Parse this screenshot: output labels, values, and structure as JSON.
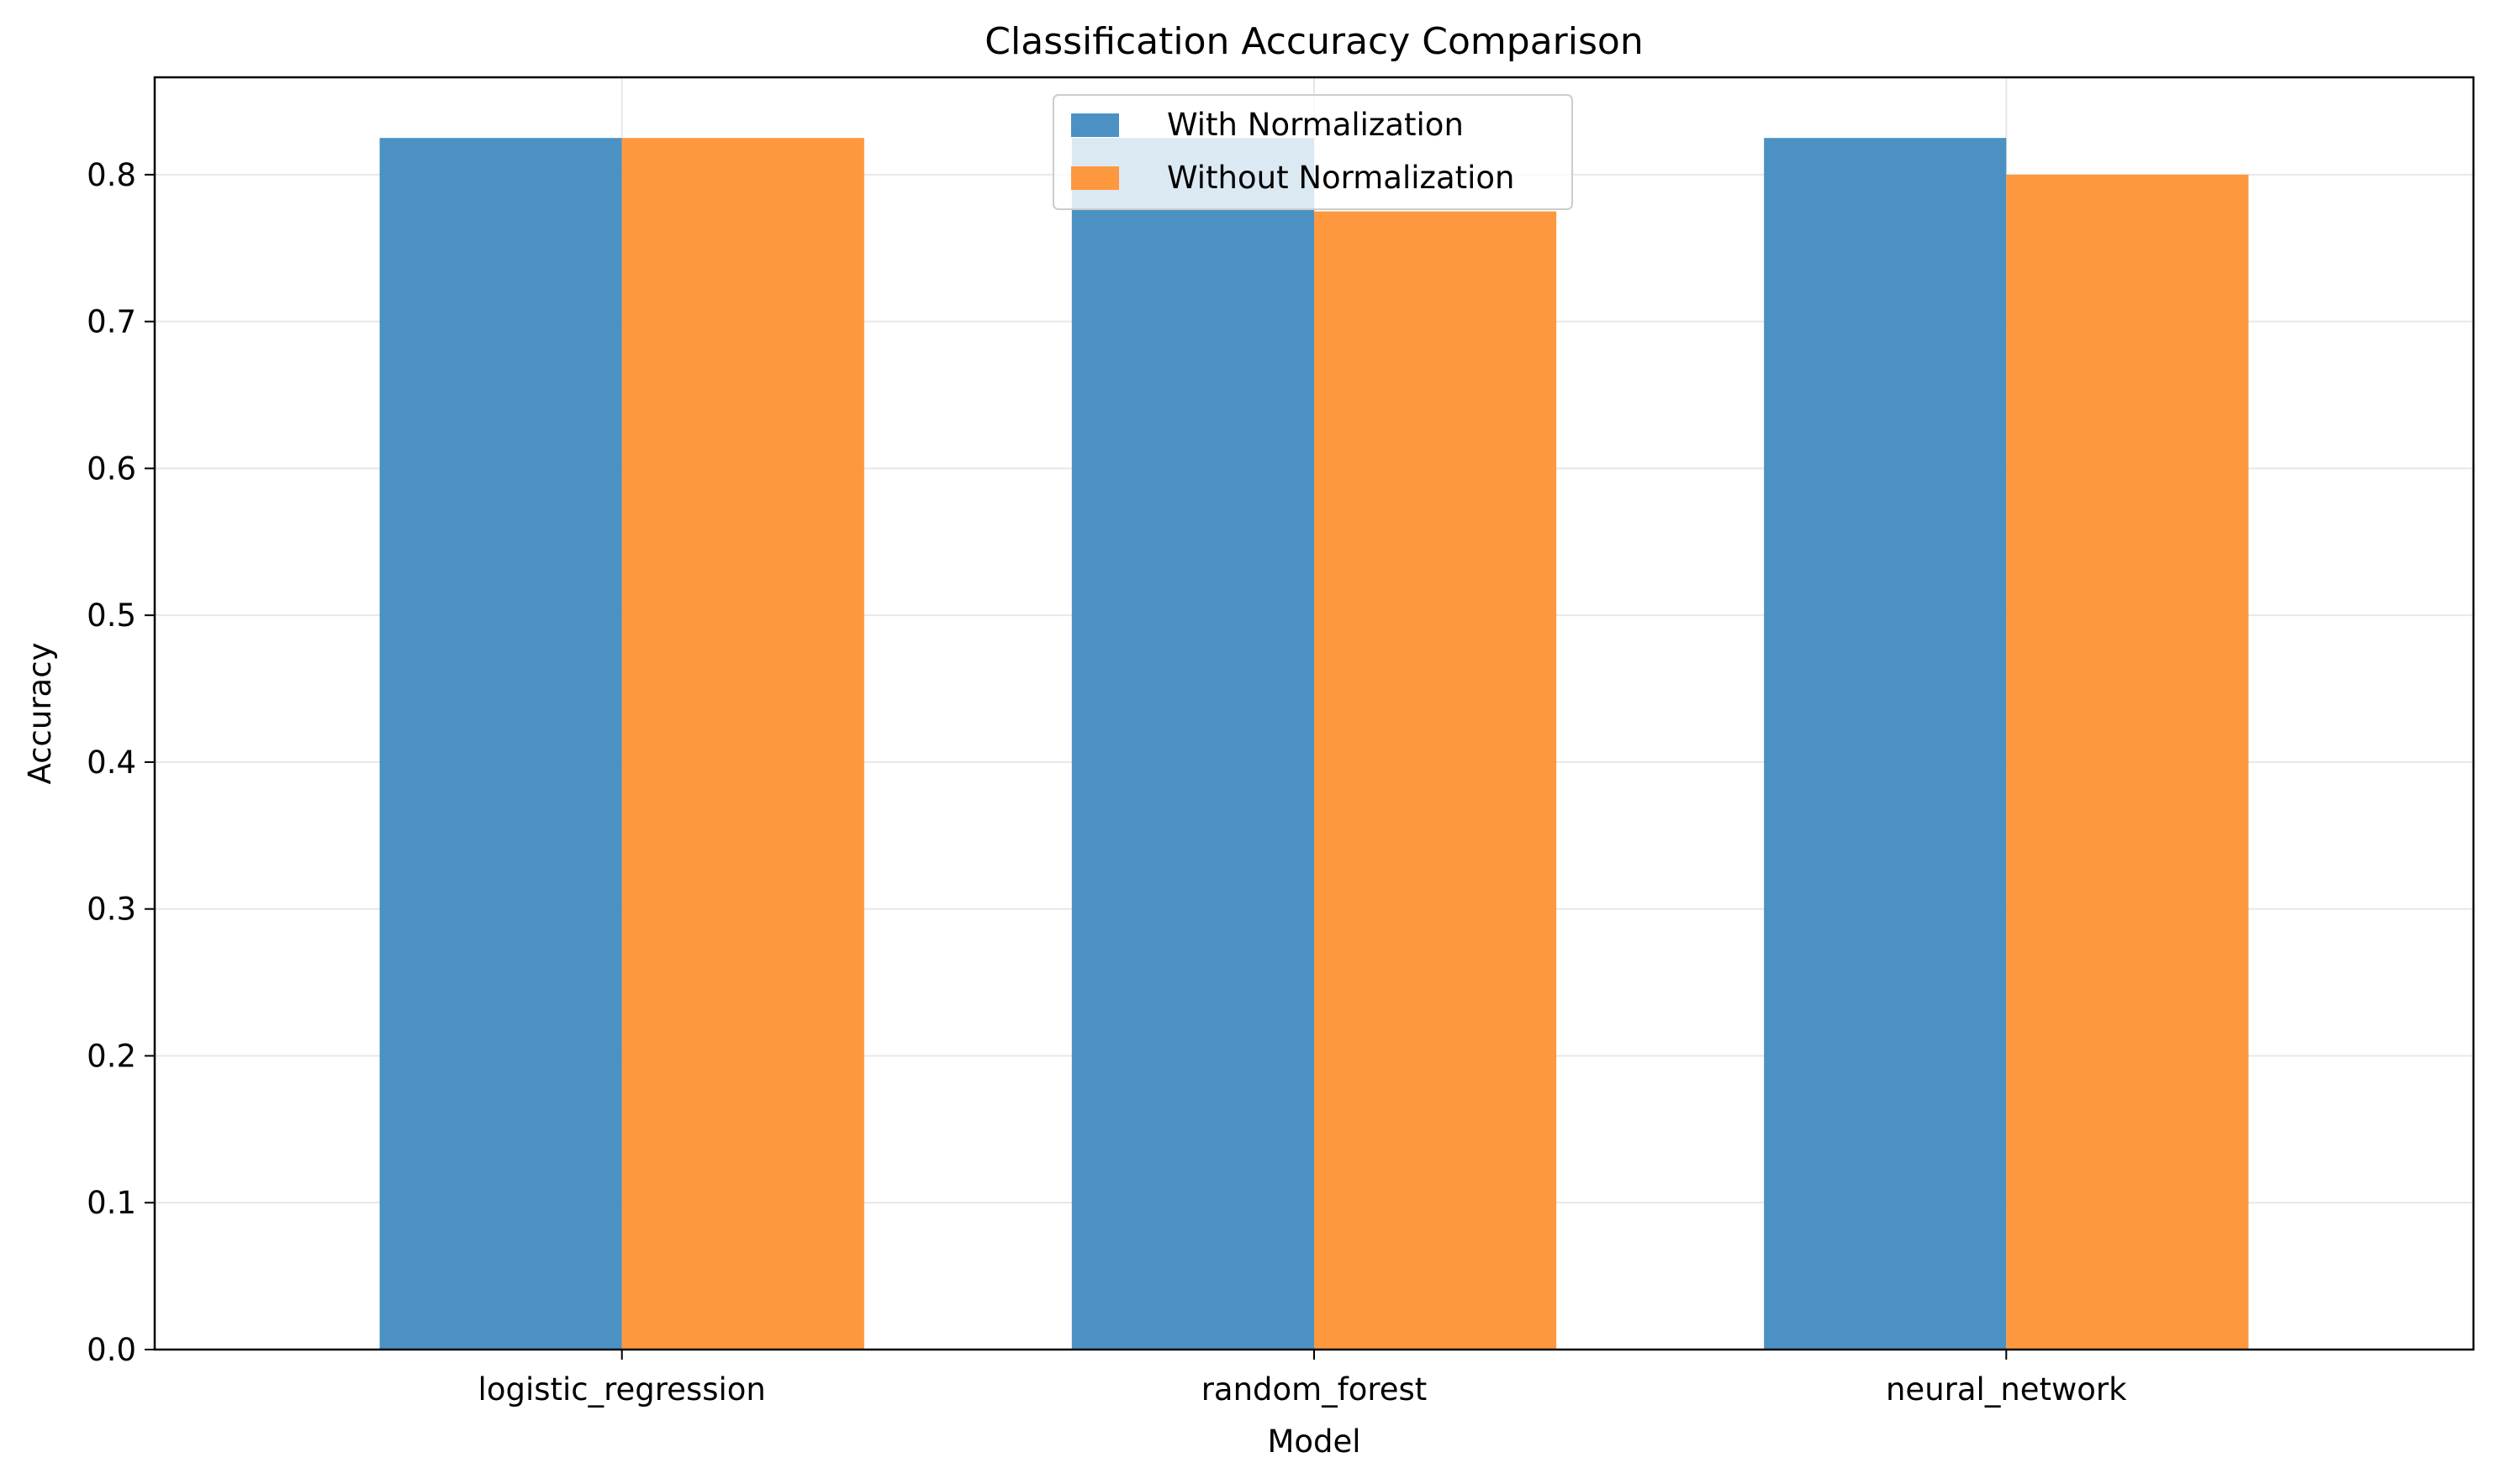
{
  "chart_data": {
    "type": "bar",
    "title": "Classification Accuracy Comparison",
    "xlabel": "Model",
    "ylabel": "Accuracy",
    "categories": [
      "logistic_regression",
      "random_forest",
      "neural_network"
    ],
    "series": [
      {
        "name": "With Normalization",
        "values": [
          0.825,
          0.825,
          0.825
        ],
        "color": "#4c91c3"
      },
      {
        "name": "Without Normalization",
        "values": [
          0.825,
          0.775,
          0.8
        ],
        "color": "#fe983f"
      }
    ],
    "ylim": [
      0,
      0.8663
    ],
    "yticks": [
      "0.0",
      "0.1",
      "0.2",
      "0.3",
      "0.4",
      "0.5",
      "0.6",
      "0.7",
      "0.8"
    ],
    "grid": true,
    "legend_position": "top-center"
  }
}
